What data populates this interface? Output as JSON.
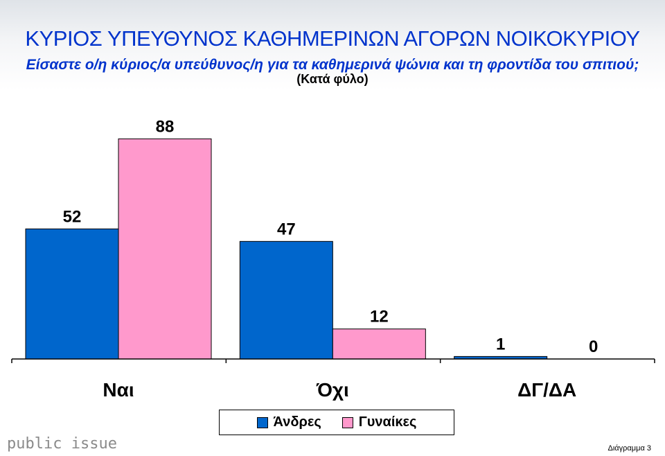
{
  "header": {
    "title": "ΚΥΡΙΟΣ ΥΠΕΥΘΥΝΟΣ ΚΑΘΗΜΕΡΙΝΩΝ ΑΓΟΡΩΝ ΝΟΙΚΟΚΥΡΙΟΥ",
    "subtitle": "Είσαστε ο/η κύριος/α υπεύθυνος/η για τα καθημερινά ψώνια και τη φροντίδα του σπιτιού;",
    "subtitle2": "(Κατά φύλο)"
  },
  "chart_data": {
    "type": "bar",
    "categories": [
      "Ναι",
      "Όχι",
      "ΔΓ/ΔΑ"
    ],
    "series": [
      {
        "name": "Άνδρες",
        "values": [
          52,
          47,
          1
        ],
        "color": "#0066cc"
      },
      {
        "name": "Γυναίκες",
        "values": [
          88,
          12,
          0
        ],
        "color": "#ff99cc"
      }
    ],
    "ylim": [
      0,
      100
    ],
    "grid": false,
    "legend": "bottom"
  },
  "footer": {
    "logo": "public issue",
    "page_label": "Διάγραμμα 3"
  }
}
